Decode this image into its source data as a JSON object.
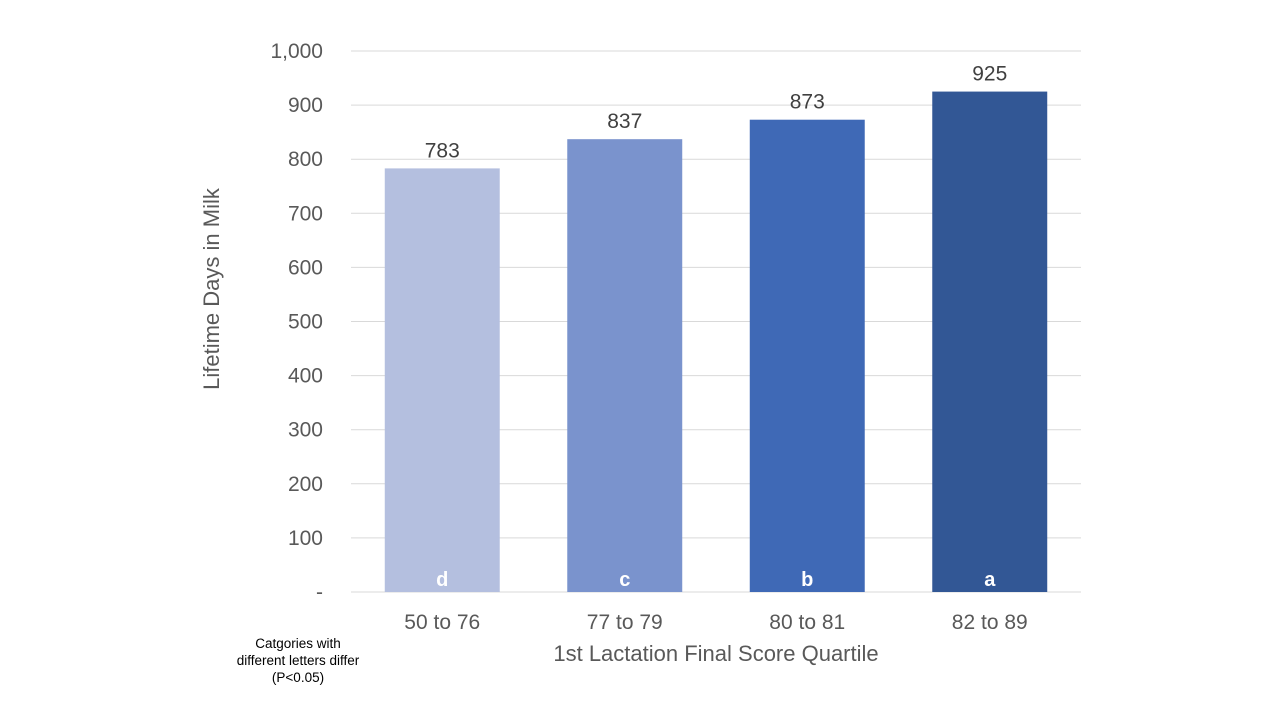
{
  "chart_data": {
    "type": "bar",
    "categories": [
      "50 to 76",
      "77 to 79",
      "80 to 81",
      "82 to 89"
    ],
    "values": [
      783,
      837,
      873,
      925
    ],
    "value_labels": [
      "783",
      "837",
      "873",
      "925"
    ],
    "significance_letters": [
      "d",
      "c",
      "b",
      "a"
    ],
    "bar_colors": [
      "#B4BFDF",
      "#7A93CD",
      "#3F69B6",
      "#325795"
    ],
    "xlabel": "1st Lactation Final Score Quartile",
    "ylabel": "Lifetime Days in Milk",
    "ylim": [
      0,
      1000
    ],
    "yticks": [
      0,
      100,
      200,
      300,
      400,
      500,
      600,
      700,
      800,
      900,
      1000
    ],
    "ytick_labels": [
      "-",
      "100",
      "200",
      "300",
      "400",
      "500",
      "600",
      "700",
      "800",
      "900",
      "1,000"
    ],
    "grid": true,
    "gridline_color": "#D9D9D9",
    "legend": "none"
  },
  "note": "Catgories with\ndifferent letters differ\n(P<0.05)"
}
